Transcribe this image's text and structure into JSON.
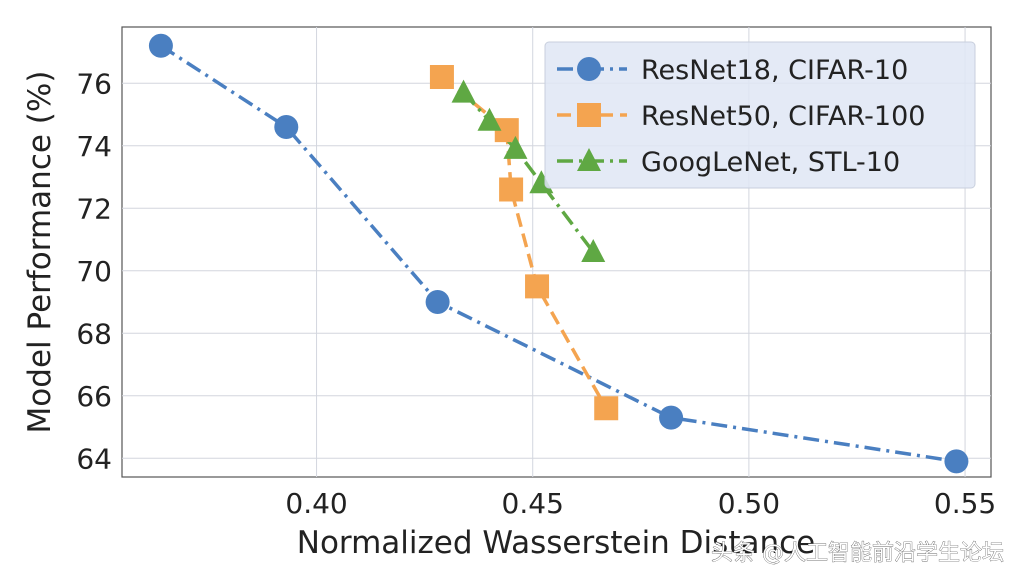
{
  "chart_data": {
    "type": "line",
    "title": "",
    "xlabel": "Normalized Wasserstein Distance",
    "ylabel": "Model Performance (%)",
    "xlim": [
      0.355,
      0.556
    ],
    "ylim": [
      63.4,
      77.8
    ],
    "x_ticks": [
      0.4,
      0.45,
      0.5,
      0.55
    ],
    "x_tick_labels": [
      "0.40",
      "0.45",
      "0.50",
      "0.55"
    ],
    "y_ticks": [
      64,
      66,
      68,
      70,
      72,
      74,
      76
    ],
    "y_tick_labels": [
      "64",
      "66",
      "68",
      "70",
      "72",
      "74",
      "76"
    ],
    "grid": true,
    "legend_position": "top-right",
    "series": [
      {
        "name": "ResNet18, CIFAR-10",
        "color": "#4a7fc1",
        "marker": "circle",
        "linestyle": "dash-dot",
        "x": [
          0.364,
          0.393,
          0.428,
          0.482,
          0.548
        ],
        "y": [
          77.2,
          74.6,
          69.0,
          65.3,
          63.9
        ]
      },
      {
        "name": "ResNet50, CIFAR-100",
        "color": "#f4a450",
        "marker": "square",
        "linestyle": "dashed",
        "x": [
          0.429,
          0.444,
          0.445,
          0.451,
          0.467
        ],
        "y": [
          76.2,
          74.5,
          72.6,
          69.5,
          65.6
        ]
      },
      {
        "name": "GoogLeNet, STL-10",
        "color": "#5fa843",
        "marker": "triangle",
        "linestyle": "dash-dot",
        "x": [
          0.434,
          0.44,
          0.446,
          0.452,
          0.464
        ],
        "y": [
          75.7,
          74.8,
          73.9,
          72.8,
          70.6
        ]
      }
    ],
    "watermark": "头条 @人工智能前沿学生论坛"
  }
}
